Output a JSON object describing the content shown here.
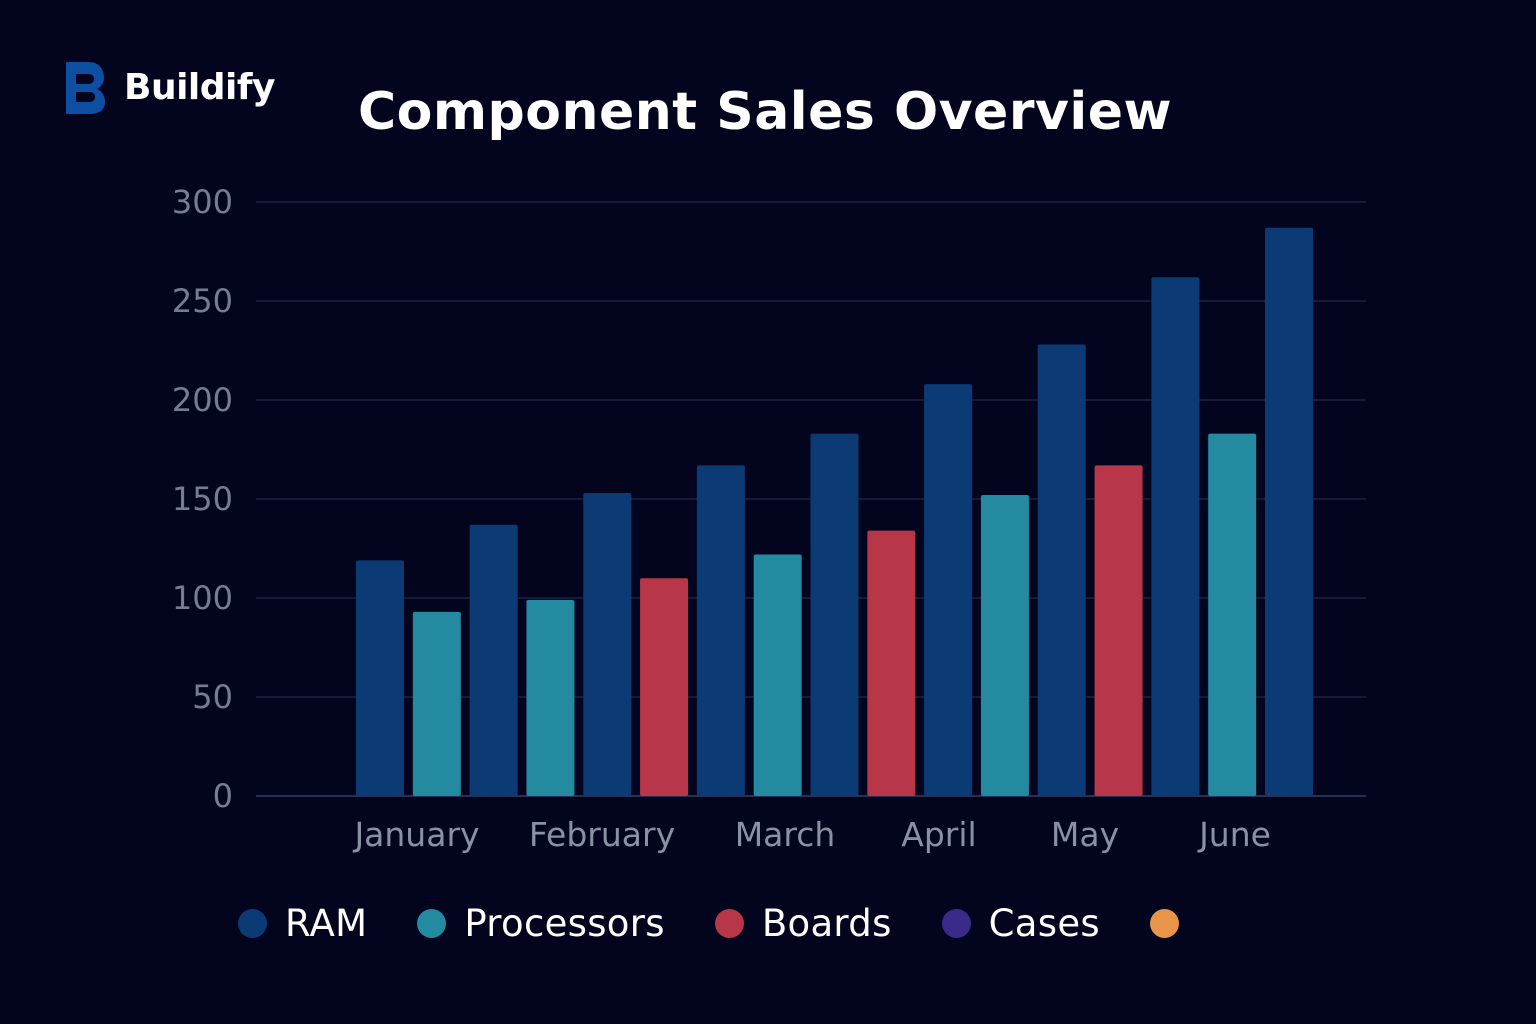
{
  "brand": {
    "name": "Buildify",
    "icon": "buildify-logo-icon",
    "color": "#0d4fa3"
  },
  "chart_data": {
    "type": "bar",
    "title": "Component Sales Overview",
    "xlabel": "",
    "ylabel": "",
    "ylim": [
      0,
      300
    ],
    "yticks": [
      0,
      50,
      100,
      150,
      200,
      250,
      300
    ],
    "grid": true,
    "legend_position": "bottom",
    "categories": [
      "January",
      "February",
      "March",
      "April",
      "May",
      "June"
    ],
    "legend": [
      {
        "label": "RAM",
        "color": "#0b3a75"
      },
      {
        "label": "Processors",
        "color": "#238aa0"
      },
      {
        "label": "Boards",
        "color": "#b73749"
      },
      {
        "label": "Cases",
        "color": "#3a2a8a"
      },
      {
        "label": "",
        "color": "#e8954a"
      }
    ],
    "bars": [
      {
        "series": "RAM",
        "category": "January",
        "value": 119
      },
      {
        "series": "Processors",
        "category": "January",
        "value": 93
      },
      {
        "series": "RAM",
        "category": "January",
        "value": 137
      },
      {
        "series": "Processors",
        "category": "February",
        "value": 99
      },
      {
        "series": "RAM",
        "category": "February",
        "value": 153
      },
      {
        "series": "Boards",
        "category": "February",
        "value": 110
      },
      {
        "series": "RAM",
        "category": "March",
        "value": 167
      },
      {
        "series": "Processors",
        "category": "March",
        "value": 122
      },
      {
        "series": "RAM",
        "category": "March",
        "value": 183
      },
      {
        "series": "Boards",
        "category": "April",
        "value": 134
      },
      {
        "series": "RAM",
        "category": "April",
        "value": 208
      },
      {
        "series": "Processors",
        "category": "April",
        "value": 152
      },
      {
        "series": "RAM",
        "category": "May",
        "value": 228
      },
      {
        "series": "Boards",
        "category": "May",
        "value": 167
      },
      {
        "series": "RAM",
        "category": "June",
        "value": 262
      },
      {
        "series": "Processors",
        "category": "June",
        "value": 183
      },
      {
        "series": "RAM",
        "category": "June",
        "value": 287
      }
    ]
  }
}
